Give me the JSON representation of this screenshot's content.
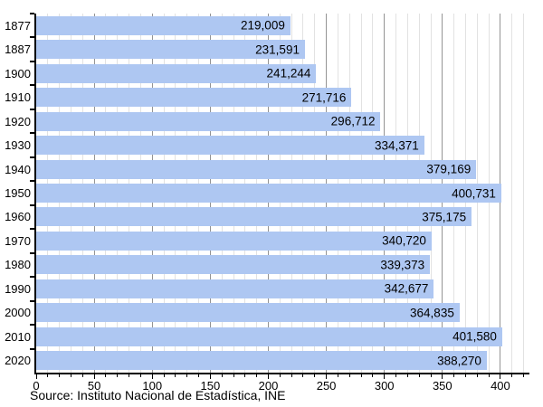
{
  "chart_data": {
    "type": "bar",
    "orientation": "horizontal",
    "title": "",
    "xlabel": "",
    "ylabel": "",
    "categories": [
      "1877",
      "1887",
      "1900",
      "1910",
      "1920",
      "1930",
      "1940",
      "1950",
      "1960",
      "1970",
      "1980",
      "1990",
      "2000",
      "2010",
      "2020"
    ],
    "values": [
      219009,
      231591,
      241244,
      271716,
      296712,
      334371,
      379169,
      400731,
      375175,
      340720,
      339373,
      342677,
      364835,
      401580,
      388270
    ],
    "values_formatted": [
      "219,009",
      "231,591",
      "241,244",
      "271,716",
      "296,712",
      "334,371",
      "379,169",
      "400,731",
      "375,175",
      "340,720",
      "339,373",
      "342,677",
      "364,835",
      "401,580",
      "388,270"
    ],
    "value_unit": "thousands",
    "xlim": [
      0,
      425
    ],
    "x_major_ticks": [
      0,
      50,
      100,
      150,
      200,
      250,
      300,
      350,
      400
    ],
    "x_major_tick_labels": [
      "0",
      "50",
      "100",
      "150",
      "200",
      "250",
      "300",
      "350",
      "400"
    ],
    "x_minor_tick_step": 10,
    "grid": true,
    "legend": "none",
    "colors": {
      "bar": "#AEC7F2",
      "axis": "#000000",
      "major_grid": "#949494",
      "minor_grid": "#e2e2e2",
      "text": "#000000",
      "background": "#ffffff"
    },
    "source_note": "Source: Instituto Nacional de Estadística, INE"
  }
}
